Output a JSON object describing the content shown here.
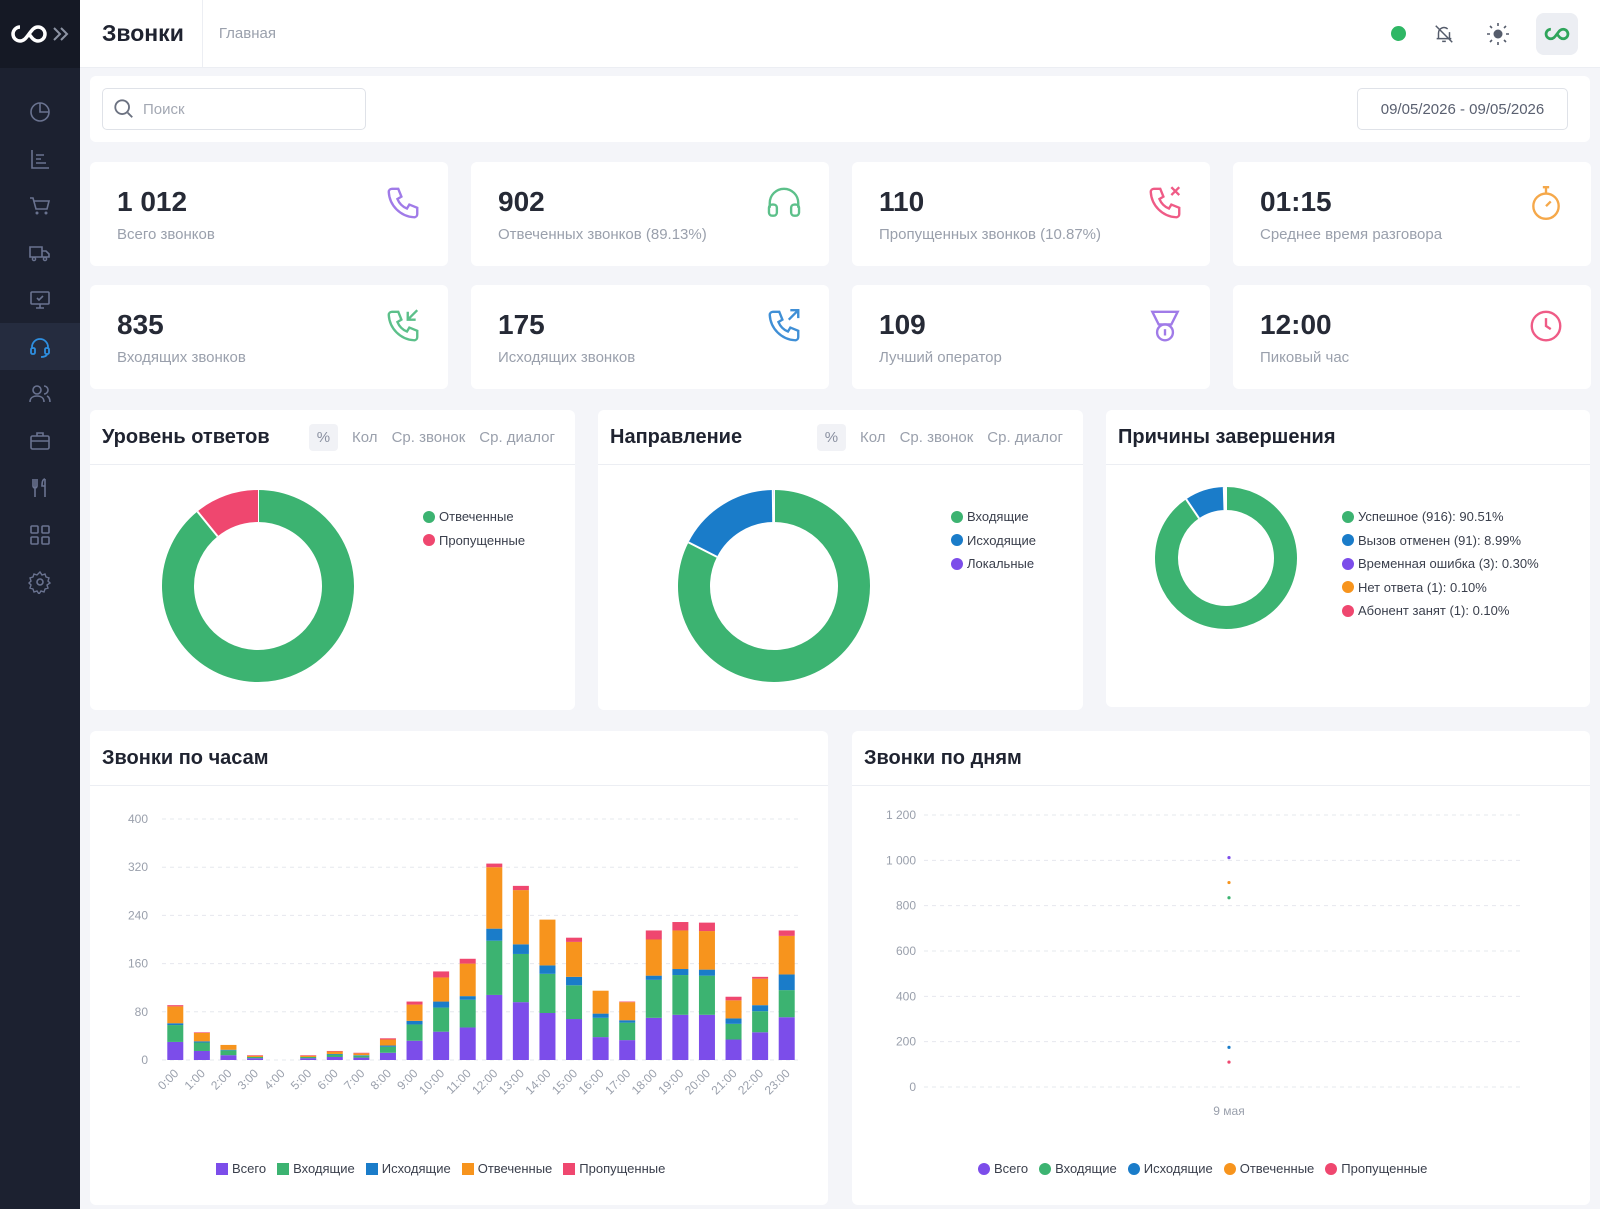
{
  "header": {
    "title": "Звонки",
    "breadcrumb": "Главная"
  },
  "sidebar": {
    "items": [
      {
        "icon": "pie-chart-icon"
      },
      {
        "icon": "bar-list-icon"
      },
      {
        "icon": "cart-icon"
      },
      {
        "icon": "truck-icon"
      },
      {
        "icon": "monitor-check-icon"
      },
      {
        "icon": "headset-icon",
        "active": true
      },
      {
        "icon": "users-icon"
      },
      {
        "icon": "briefcase-icon"
      },
      {
        "icon": "cutlery-icon"
      },
      {
        "icon": "grid-icon"
      },
      {
        "icon": "gear-icon"
      }
    ]
  },
  "search": {
    "placeholder": "Поиск"
  },
  "date_range": "09/05/2026 - 09/05/2026",
  "stats": [
    {
      "value": "1 012",
      "label": "Всего звонков",
      "icon": "phone-icon",
      "color": "#a07be8"
    },
    {
      "value": "902",
      "label": "Отвеченных звонков (89.13%)",
      "icon": "headphones-icon",
      "color": "#5cc08a"
    },
    {
      "value": "110",
      "label": "Пропущенных звонков (10.87%)",
      "icon": "phone-missed-icon",
      "color": "#ef5b86"
    },
    {
      "value": "01:15",
      "label": "Среднее время разговора",
      "icon": "stopwatch-icon",
      "color": "#f5a84a"
    },
    {
      "value": "835",
      "label": "Входящих звонков",
      "icon": "phone-incoming-icon",
      "color": "#5cc08a"
    },
    {
      "value": "175",
      "label": "Исходящих звонков",
      "icon": "phone-outgoing-icon",
      "color": "#3f8fd6"
    },
    {
      "value": "109",
      "label": "Лучший оператор",
      "icon": "medal-icon",
      "color": "#a07be8"
    },
    {
      "value": "12:00",
      "label": "Пиковый час",
      "icon": "clock-icon",
      "color": "#ef5b86"
    }
  ],
  "toggles": {
    "percent": "%",
    "count": "Кол",
    "avg_call": "Ср. звонок",
    "avg_dialog": "Ср. диалог"
  },
  "donuts": [
    {
      "title": "Уровень ответов",
      "legend": [
        {
          "label": "Отвеченные",
          "color": "#3cb371"
        },
        {
          "label": "Пропущенные",
          "color": "#ef476f"
        }
      ]
    },
    {
      "title": "Направление",
      "legend": [
        {
          "label": "Входящие",
          "color": "#3cb371"
        },
        {
          "label": "Исходящие",
          "color": "#1a7cc9"
        },
        {
          "label": "Локальные",
          "color": "#7c4dea"
        }
      ]
    },
    {
      "title": "Причины завершения",
      "legend": [
        {
          "label": "Успешное (916): 90.51%",
          "color": "#3cb371"
        },
        {
          "label": "Вызов отменен (91): 8.99%",
          "color": "#1a7cc9"
        },
        {
          "label": "Временная ошибка (3): 0.30%",
          "color": "#7c4dea"
        },
        {
          "label": "Нет ответа (1): 0.10%",
          "color": "#f7941d"
        },
        {
          "label": "Абонент занят (1): 0.10%",
          "color": "#ef476f"
        }
      ]
    }
  ],
  "hourly": {
    "title": "Звонки по часам"
  },
  "daily": {
    "title": "Звонки по дням"
  },
  "chart_data": [
    {
      "type": "pie",
      "title": "Уровень ответов",
      "labels": [
        "Отвеченные",
        "Пропущенные"
      ],
      "values": [
        902,
        110
      ],
      "colors": [
        "#3cb371",
        "#ef476f"
      ],
      "donut": true
    },
    {
      "type": "pie",
      "title": "Направление",
      "labels": [
        "Входящие",
        "Исходящие",
        "Локальные"
      ],
      "values": [
        835,
        175,
        2
      ],
      "colors": [
        "#3cb371",
        "#1a7cc9",
        "#7c4dea"
      ],
      "donut": true
    },
    {
      "type": "pie",
      "title": "Причины завершения",
      "labels": [
        "Успешное",
        "Вызов отменен",
        "Временная ошибка",
        "Нет ответа",
        "Абонент занят"
      ],
      "values": [
        916,
        91,
        3,
        1,
        1
      ],
      "colors": [
        "#3cb371",
        "#1a7cc9",
        "#7c4dea",
        "#f7941d",
        "#ef476f"
      ],
      "donut": true
    },
    {
      "type": "bar",
      "stacked": true,
      "title": "Звонки по часам",
      "categories": [
        "0:00",
        "1:00",
        "2:00",
        "3:00",
        "4:00",
        "5:00",
        "6:00",
        "7:00",
        "8:00",
        "9:00",
        "10:00",
        "11:00",
        "12:00",
        "13:00",
        "14:00",
        "15:00",
        "16:00",
        "17:00",
        "18:00",
        "19:00",
        "20:00",
        "21:00",
        "22:00",
        "23:00"
      ],
      "ylim": [
        0,
        400
      ],
      "yticks": [
        0,
        80,
        160,
        240,
        320,
        400
      ],
      "grid": true,
      "legend": "bottom",
      "series": [
        {
          "name": "Всего",
          "color": "#7c4dea",
          "values": [
            30,
            15,
            8,
            3,
            0,
            3,
            5,
            4,
            12,
            32,
            47,
            54,
            108,
            96,
            78,
            68,
            38,
            33,
            70,
            75,
            75,
            34,
            46,
            71
          ]
        },
        {
          "name": "Входящие",
          "color": "#3cb371",
          "values": [
            28,
            14,
            8,
            2,
            0,
            2,
            4,
            3,
            10,
            27,
            40,
            46,
            90,
            80,
            65,
            56,
            32,
            29,
            63,
            66,
            65,
            26,
            35,
            45
          ]
        },
        {
          "name": "Исходящие",
          "color": "#1a7cc9",
          "values": [
            3,
            2,
            1,
            0,
            0,
            0,
            1,
            1,
            2,
            6,
            10,
            6,
            20,
            16,
            14,
            14,
            7,
            4,
            7,
            10,
            10,
            9,
            10,
            26
          ]
        },
        {
          "name": "Отвеченные",
          "color": "#f7941d",
          "values": [
            28,
            14,
            8,
            2,
            0,
            2,
            4,
            3,
            10,
            27,
            40,
            54,
            102,
            90,
            76,
            58,
            38,
            30,
            60,
            64,
            64,
            30,
            44,
            64
          ]
        },
        {
          "name": "Пропущенные",
          "color": "#ef476f",
          "values": [
            2,
            1,
            0,
            1,
            0,
            1,
            1,
            1,
            2,
            5,
            10,
            8,
            6,
            7,
            0,
            7,
            0,
            1,
            15,
            14,
            14,
            6,
            3,
            9
          ]
        }
      ]
    },
    {
      "type": "line",
      "title": "Звонки по дням",
      "x": [
        "9 мая"
      ],
      "ylim": [
        0,
        1200
      ],
      "yticks": [
        0,
        200,
        400,
        600,
        800,
        1000,
        1200
      ],
      "grid": true,
      "legend": "bottom",
      "series": [
        {
          "name": "Всего",
          "color": "#7c4dea",
          "values": [
            1012
          ]
        },
        {
          "name": "Входящие",
          "color": "#3cb371",
          "values": [
            835
          ]
        },
        {
          "name": "Исходящие",
          "color": "#1a7cc9",
          "values": [
            175
          ]
        },
        {
          "name": "Отвеченные",
          "color": "#f7941d",
          "values": [
            902
          ]
        },
        {
          "name": "Пропущенные",
          "color": "#ef476f",
          "values": [
            110
          ]
        }
      ]
    }
  ]
}
